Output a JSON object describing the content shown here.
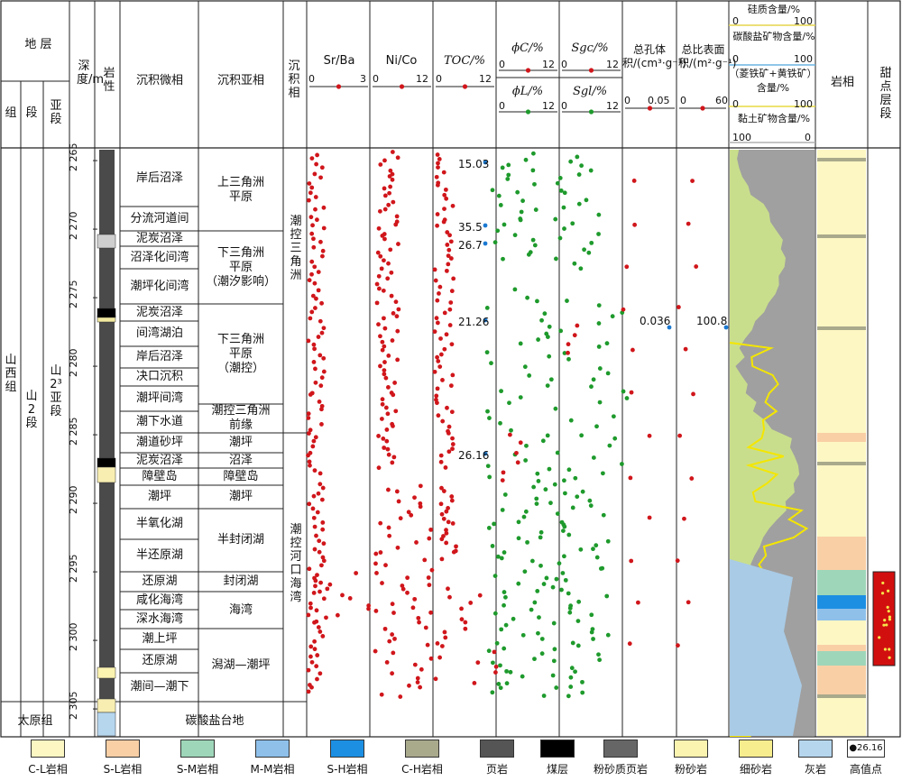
{
  "header": {
    "stratum": "地 层",
    "group": "组",
    "formation": "段",
    "member": "亚段",
    "depth": "深度/m",
    "lithology": "岩性",
    "microfacies": "沉积微相",
    "subfacies": "沉积亚相",
    "facies": "沉积相",
    "srba": "Sr/Ba",
    "srba_min": "0",
    "srba_max": "3",
    "nico": "Ni/Co",
    "nico_min": "0",
    "nico_max": "12",
    "toc": "TOC/%",
    "toc_min": "0",
    "toc_max": "12",
    "phic": "ϕC/%",
    "phil": "ϕL/%",
    "phi_min": "0",
    "phi_max": "12",
    "sgc": "Sgc/%",
    "sgl": "Sgl/%",
    "sg_min": "0",
    "sg_max": "12",
    "pore_vol": "总孔体积/(cm³·g⁻¹)",
    "pore_vol_min": "0",
    "pore_vol_max": "0.05",
    "surf_area": "总比表面积/(m²·g⁻¹)",
    "surf_min": "0",
    "surf_max": "60",
    "siliceous": "硅质含量/%",
    "siliceous_min": "0",
    "siliceous_max": "100",
    "carbonate": "碳酸盐矿物含量/%",
    "carbonate_min": "0",
    "carbonate_max": "100",
    "siderite": "（菱铁矿+黄铁矿）含量/%",
    "siderite_min": "0",
    "siderite_max": "100",
    "clay": "黏土矿物含量/%",
    "clay_min": "100",
    "clay_max": "0",
    "lithofacies": "岩相",
    "sweet": "甜点层段"
  },
  "strata": {
    "group_name": "山西组",
    "formation_name": "山2段",
    "member_name": "山2³亚段",
    "taiyuan": "太原组",
    "carbonate_platform": "碳酸盐台地"
  },
  "depth_ticks": [
    "2 265",
    "2 270",
    "2 275",
    "2 280",
    "2 285",
    "2 290",
    "2 295",
    "2 300",
    "2 305"
  ],
  "microfacies": [
    "岸后沼泽",
    "分流河道间",
    "泥炭沼泽",
    "沼泽化间湾",
    "潮坪化间湾",
    "泥炭沼泽",
    "间湾湖泊",
    "岸后沼泽",
    "决口沉积",
    "潮坪间湾",
    "潮下水道",
    "潮道砂坪",
    "泥炭沼泽",
    "障壁岛",
    "潮坪",
    "半氧化湖",
    "半还原湖",
    "还原湖",
    "咸化海湾",
    "深水海湾",
    "潮上坪",
    "还原湖",
    "潮间—潮下"
  ],
  "subfacies": [
    "上三角洲平原",
    "下三角洲平原（潮汐影响）",
    "下三角洲平原（潮控）",
    "潮控三角洲前缘",
    "潮坪",
    "沼泽",
    "障壁岛",
    "潮坪",
    "半封闭湖",
    "封闭湖",
    "海湾",
    "潟湖—潮坪"
  ],
  "facies": [
    "潮控三角洲",
    "潮控河口海湾"
  ],
  "high_values": {
    "toc": [
      "15.03",
      "35.5",
      "26.7",
      "21.26",
      "26.16"
    ],
    "pore": "0.036",
    "surf": "100.8"
  },
  "legend": [
    {
      "label": "C-L岩相",
      "color": "#fdf7c3"
    },
    {
      "label": "S-L岩相",
      "color": "#f9cfa6"
    },
    {
      "label": "S-M岩相",
      "color": "#9ed6b9"
    },
    {
      "label": "M-M岩相",
      "color": "#8ec0ea"
    },
    {
      "label": "S-H岩相",
      "color": "#1c8fe3"
    },
    {
      "label": "C-H岩相",
      "color": "#a9a98c"
    },
    {
      "label": "页岩",
      "color": "#555555"
    },
    {
      "label": "煤层",
      "color": "#000000"
    },
    {
      "label": "粉砂质页岩",
      "color": "#666666"
    },
    {
      "label": "粉砂岩",
      "color": "#fbf3b0"
    },
    {
      "label": "细砂岩",
      "color": "#f7ed8e"
    },
    {
      "label": "灰岩",
      "color": "#b6d6ee"
    },
    {
      "label": "高值点",
      "color": "#ffffff"
    }
  ],
  "legend_high_value": "26.16",
  "colors": {
    "red": "#d0161b",
    "green": "#1e9a2c",
    "blue": "#1b79d1",
    "clay": "#c9de8c",
    "sweet": "#d20f0f"
  }
}
